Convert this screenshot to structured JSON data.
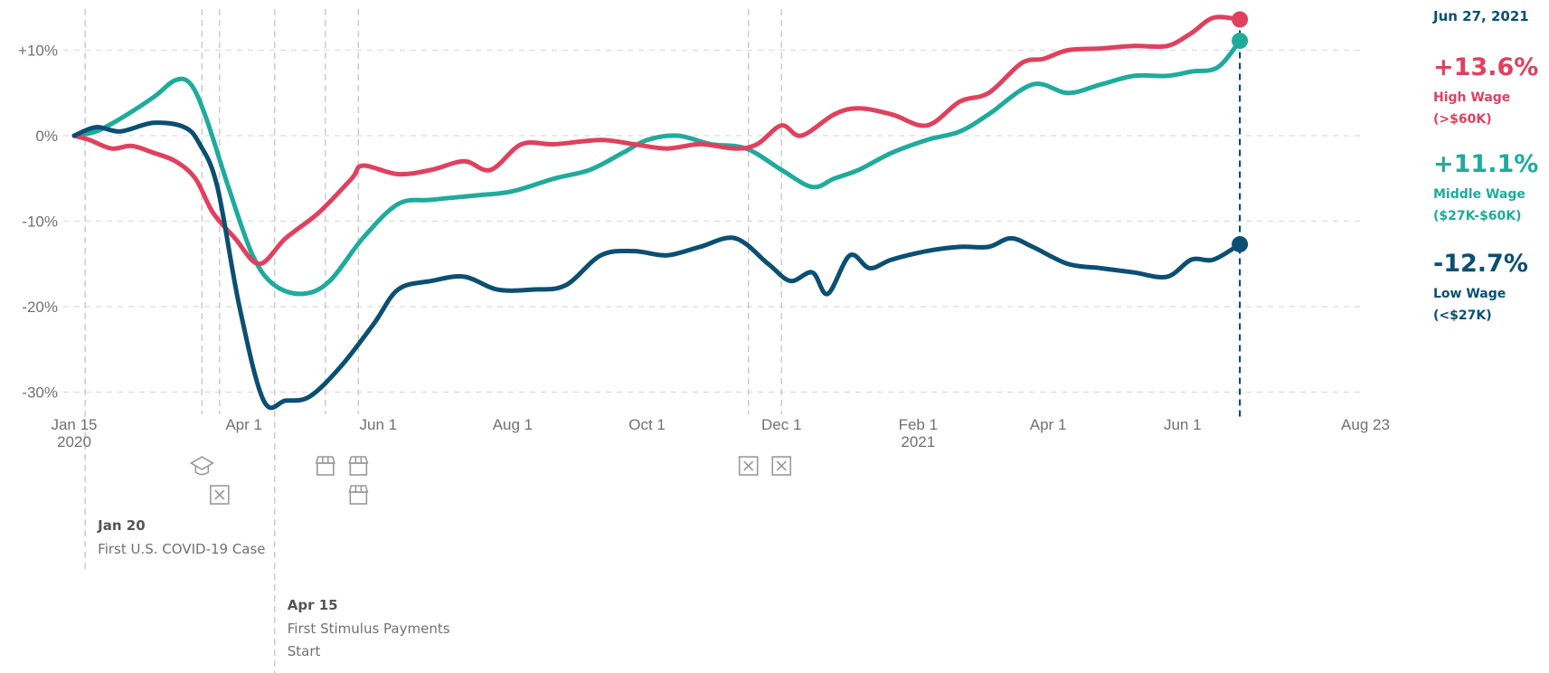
{
  "chart_data": {
    "type": "line",
    "x_start": "2020-01-15",
    "x_end": "2021-08-23",
    "ylim": [
      -31,
      12.5
    ],
    "grid": true,
    "yticks": [
      {
        "value": 10,
        "label": "+10%"
      },
      {
        "value": 0,
        "label": "0%"
      },
      {
        "value": -10,
        "label": "-10%"
      },
      {
        "value": -20,
        "label": "-20%"
      },
      {
        "value": -30,
        "label": "-30%"
      }
    ],
    "xticks": [
      {
        "date": "2020-01-15",
        "label": "Jan 15",
        "sublabel": "2020"
      },
      {
        "date": "2020-04-01",
        "label": "Apr 1",
        "sublabel": ""
      },
      {
        "date": "2020-06-01",
        "label": "Jun 1",
        "sublabel": ""
      },
      {
        "date": "2020-08-01",
        "label": "Aug 1",
        "sublabel": ""
      },
      {
        "date": "2020-10-01",
        "label": "Oct 1",
        "sublabel": ""
      },
      {
        "date": "2020-12-01",
        "label": "Dec 1",
        "sublabel": ""
      },
      {
        "date": "2021-02-01",
        "label": "Feb 1",
        "sublabel": "2021"
      },
      {
        "date": "2021-04-01",
        "label": "Apr 1",
        "sublabel": ""
      },
      {
        "date": "2021-06-01",
        "label": "Jun 1",
        "sublabel": ""
      },
      {
        "date": "2021-08-23",
        "label": "Aug 23",
        "sublabel": ""
      }
    ],
    "event_markers": [
      {
        "date": "2020-03-13",
        "icon": "school-icon",
        "row": 1
      },
      {
        "date": "2020-03-21",
        "icon": "closed-box-icon",
        "row": 2
      },
      {
        "date": "2020-05-08",
        "icon": "store-icon",
        "row": 1
      },
      {
        "date": "2020-05-23",
        "icon": "store-icon",
        "row": 1
      },
      {
        "date": "2020-05-23",
        "icon": "store-icon",
        "row": 2
      },
      {
        "date": "2020-11-16",
        "icon": "closed-box-icon",
        "row": 1
      },
      {
        "date": "2020-12-01",
        "icon": "closed-box-icon",
        "row": 1
      }
    ],
    "annotations": [
      {
        "date": "2020-01-20",
        "title": "Jan 20",
        "lines": [
          "First U.S. COVID-19 Case"
        ]
      },
      {
        "date": "2020-04-15",
        "title": "Apr 15",
        "lines": [
          "First Stimulus Payments",
          "Start"
        ]
      }
    ],
    "series": [
      {
        "name": "High Wage",
        "range": "(>$60K)",
        "latest_label": "+13.6%",
        "color": "#e0405e",
        "points": [
          [
            "2020-01-15",
            0
          ],
          [
            "2020-01-22",
            -0.5
          ],
          [
            "2020-02-01",
            -1.5
          ],
          [
            "2020-02-10",
            -1.2
          ],
          [
            "2020-02-20",
            -2
          ],
          [
            "2020-03-01",
            -3
          ],
          [
            "2020-03-10",
            -5
          ],
          [
            "2020-03-18",
            -9
          ],
          [
            "2020-03-28",
            -12
          ],
          [
            "2020-04-08",
            -15
          ],
          [
            "2020-04-20",
            -12
          ],
          [
            "2020-05-05",
            -9
          ],
          [
            "2020-05-20",
            -5
          ],
          [
            "2020-05-25",
            -3.5
          ],
          [
            "2020-06-10",
            -4.5
          ],
          [
            "2020-06-25",
            -4
          ],
          [
            "2020-07-10",
            -3
          ],
          [
            "2020-07-22",
            -4
          ],
          [
            "2020-08-05",
            -1
          ],
          [
            "2020-08-20",
            -1
          ],
          [
            "2020-09-10",
            -0.5
          ],
          [
            "2020-09-25",
            -1
          ],
          [
            "2020-10-10",
            -1.5
          ],
          [
            "2020-10-25",
            -1
          ],
          [
            "2020-11-10",
            -1.5
          ],
          [
            "2020-11-20",
            -1
          ],
          [
            "2020-12-01",
            1.2
          ],
          [
            "2020-12-10",
            0
          ],
          [
            "2020-12-25",
            2.5
          ],
          [
            "2021-01-05",
            3.2
          ],
          [
            "2021-01-20",
            2.5
          ],
          [
            "2021-02-05",
            1.2
          ],
          [
            "2021-02-20",
            4
          ],
          [
            "2021-03-05",
            5
          ],
          [
            "2021-03-20",
            8.5
          ],
          [
            "2021-03-30",
            9
          ],
          [
            "2021-04-10",
            10
          ],
          [
            "2021-04-25",
            10.2
          ],
          [
            "2021-05-10",
            10.5
          ],
          [
            "2021-05-25",
            10.5
          ],
          [
            "2021-06-05",
            12
          ],
          [
            "2021-06-15",
            13.8
          ],
          [
            "2021-06-27",
            13.6
          ]
        ]
      },
      {
        "name": "Middle Wage",
        "range": "($27K-$60K)",
        "latest_label": "+11.1%",
        "color": "#1fab9c",
        "points": [
          [
            "2020-01-15",
            0
          ],
          [
            "2020-01-25",
            0.5
          ],
          [
            "2020-02-05",
            2
          ],
          [
            "2020-02-20",
            4.5
          ],
          [
            "2020-03-01",
            6.5
          ],
          [
            "2020-03-08",
            6
          ],
          [
            "2020-03-15",
            2
          ],
          [
            "2020-03-25",
            -6
          ],
          [
            "2020-04-05",
            -14
          ],
          [
            "2020-04-15",
            -17.5
          ],
          [
            "2020-04-28",
            -18.5
          ],
          [
            "2020-05-10",
            -17
          ],
          [
            "2020-05-25",
            -12
          ],
          [
            "2020-06-10",
            -8
          ],
          [
            "2020-06-25",
            -7.5
          ],
          [
            "2020-07-15",
            -7
          ],
          [
            "2020-08-01",
            -6.5
          ],
          [
            "2020-08-20",
            -5
          ],
          [
            "2020-09-05",
            -4
          ],
          [
            "2020-09-20",
            -2
          ],
          [
            "2020-10-01",
            -0.5
          ],
          [
            "2020-10-15",
            0
          ],
          [
            "2020-10-30",
            -1
          ],
          [
            "2020-11-15",
            -1.5
          ],
          [
            "2020-12-01",
            -4
          ],
          [
            "2020-12-15",
            -6
          ],
          [
            "2020-12-25",
            -5
          ],
          [
            "2021-01-05",
            -4
          ],
          [
            "2021-01-20",
            -2
          ],
          [
            "2021-02-05",
            -0.5
          ],
          [
            "2021-02-20",
            0.5
          ],
          [
            "2021-03-05",
            2.5
          ],
          [
            "2021-03-25",
            6
          ],
          [
            "2021-04-10",
            5
          ],
          [
            "2021-04-25",
            6
          ],
          [
            "2021-05-10",
            7
          ],
          [
            "2021-05-25",
            7
          ],
          [
            "2021-06-05",
            7.5
          ],
          [
            "2021-06-17",
            8
          ],
          [
            "2021-06-27",
            11.1
          ]
        ]
      },
      {
        "name": "Low Wage",
        "range": "(<$27K)",
        "latest_label": "-12.7%",
        "color": "#0b4f72",
        "points": [
          [
            "2020-01-15",
            0
          ],
          [
            "2020-01-25",
            1
          ],
          [
            "2020-02-05",
            0.5
          ],
          [
            "2020-02-20",
            1.5
          ],
          [
            "2020-03-05",
            1
          ],
          [
            "2020-03-12",
            -1
          ],
          [
            "2020-03-20",
            -6
          ],
          [
            "2020-03-30",
            -20
          ],
          [
            "2020-04-10",
            -31
          ],
          [
            "2020-04-20",
            -31
          ],
          [
            "2020-05-01",
            -30.5
          ],
          [
            "2020-05-15",
            -27
          ],
          [
            "2020-05-30",
            -22
          ],
          [
            "2020-06-10",
            -18
          ],
          [
            "2020-06-25",
            -17
          ],
          [
            "2020-07-10",
            -16.5
          ],
          [
            "2020-07-25",
            -18
          ],
          [
            "2020-08-10",
            -18
          ],
          [
            "2020-08-25",
            -17.5
          ],
          [
            "2020-09-10",
            -14
          ],
          [
            "2020-09-25",
            -13.5
          ],
          [
            "2020-10-10",
            -14
          ],
          [
            "2020-10-25",
            -13
          ],
          [
            "2020-11-10",
            -12
          ],
          [
            "2020-11-25",
            -15
          ],
          [
            "2020-12-05",
            -17
          ],
          [
            "2020-12-15",
            -16
          ],
          [
            "2020-12-22",
            -18.5
          ],
          [
            "2021-01-01",
            -14
          ],
          [
            "2021-01-10",
            -15.5
          ],
          [
            "2021-01-20",
            -14.5
          ],
          [
            "2021-02-05",
            -13.5
          ],
          [
            "2021-02-20",
            -13
          ],
          [
            "2021-03-05",
            -13
          ],
          [
            "2021-03-15",
            -12
          ],
          [
            "2021-03-25",
            -13
          ],
          [
            "2021-04-10",
            -15
          ],
          [
            "2021-04-25",
            -15.5
          ],
          [
            "2021-05-10",
            -16
          ],
          [
            "2021-05-25",
            -16.5
          ],
          [
            "2021-06-05",
            -14.5
          ],
          [
            "2021-06-15",
            -14.5
          ],
          [
            "2021-06-27",
            -12.7
          ]
        ]
      }
    ],
    "latest_date": "2021-06-27",
    "latest_date_label": "Jun 27, 2021"
  }
}
